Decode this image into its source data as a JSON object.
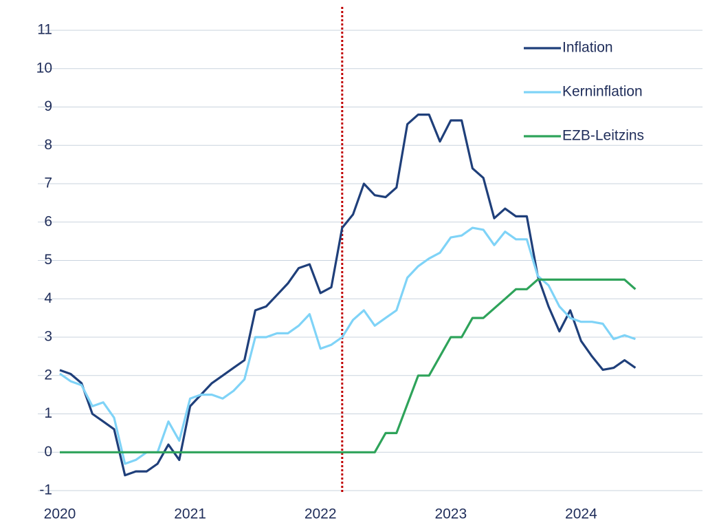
{
  "chart_data": {
    "type": "line",
    "categories": [
      "2020",
      null,
      null,
      null,
      null,
      null,
      null,
      null,
      null,
      null,
      null,
      null,
      "2021",
      null,
      null,
      null,
      null,
      null,
      null,
      null,
      null,
      null,
      null,
      null,
      "2022",
      null,
      null,
      null,
      null,
      null,
      null,
      null,
      null,
      null,
      null,
      null,
      "2023",
      null,
      null,
      null,
      null,
      null,
      null,
      null,
      null,
      null,
      null,
      null,
      "2024",
      null,
      null,
      null,
      null,
      null
    ],
    "series": [
      {
        "name": "Inflation",
        "color": "#1f3f7a",
        "values": [
          2.14,
          2.04,
          1.8,
          1.0,
          0.8,
          0.6,
          -0.6,
          -0.5,
          -0.5,
          -0.3,
          0.2,
          -0.2,
          1.2,
          1.5,
          1.8,
          2.0,
          2.2,
          2.4,
          3.7,
          3.8,
          4.1,
          4.4,
          4.8,
          4.9,
          4.15,
          4.3,
          5.85,
          6.2,
          7.0,
          6.7,
          6.65,
          6.9,
          8.55,
          8.8,
          8.8,
          8.1,
          8.65,
          8.65,
          7.4,
          7.15,
          6.1,
          6.35,
          6.15,
          6.15,
          4.6,
          3.8,
          3.15,
          3.7,
          2.9,
          2.5,
          2.15,
          2.2,
          2.4,
          2.2
        ]
      },
      {
        "name": "Kerninflation",
        "color": "#7fd3f7",
        "values": [
          2.05,
          1.85,
          1.75,
          1.2,
          1.3,
          0.9,
          -0.3,
          -0.2,
          0.0,
          0.0,
          0.8,
          0.3,
          1.4,
          1.5,
          1.5,
          1.4,
          1.6,
          1.9,
          3.0,
          3.0,
          3.1,
          3.1,
          3.3,
          3.6,
          2.7,
          2.8,
          3.0,
          3.45,
          3.7,
          3.3,
          3.5,
          3.7,
          4.55,
          4.85,
          5.05,
          5.2,
          5.6,
          5.65,
          5.85,
          5.8,
          5.4,
          5.75,
          5.55,
          5.55,
          4.6,
          4.35,
          3.8,
          3.5,
          3.4,
          3.4,
          3.35,
          2.95,
          3.05,
          2.95
        ]
      },
      {
        "name": "EZB-Leitzins",
        "color": "#2ea35a",
        "values": [
          0,
          0,
          0,
          0,
          0,
          0,
          0,
          0,
          0,
          0,
          0,
          0,
          0,
          0,
          0,
          0,
          0,
          0,
          0,
          0,
          0,
          0,
          0,
          0,
          0,
          0,
          0,
          0,
          0,
          0,
          0.5,
          0.5,
          1.25,
          2.0,
          2.0,
          2.5,
          3.0,
          3.0,
          3.5,
          3.5,
          3.75,
          4.0,
          4.25,
          4.25,
          4.5,
          4.5,
          4.5,
          4.5,
          4.5,
          4.5,
          4.5,
          4.5,
          4.5,
          4.25
        ]
      }
    ],
    "ylim": [
      -1,
      11
    ],
    "yticks": [
      -1,
      0,
      1,
      2,
      3,
      4,
      5,
      6,
      7,
      8,
      9,
      10,
      11
    ],
    "grid": true,
    "legend": "top-right",
    "vertical_line": {
      "at": 26,
      "color": "#c00000"
    }
  }
}
